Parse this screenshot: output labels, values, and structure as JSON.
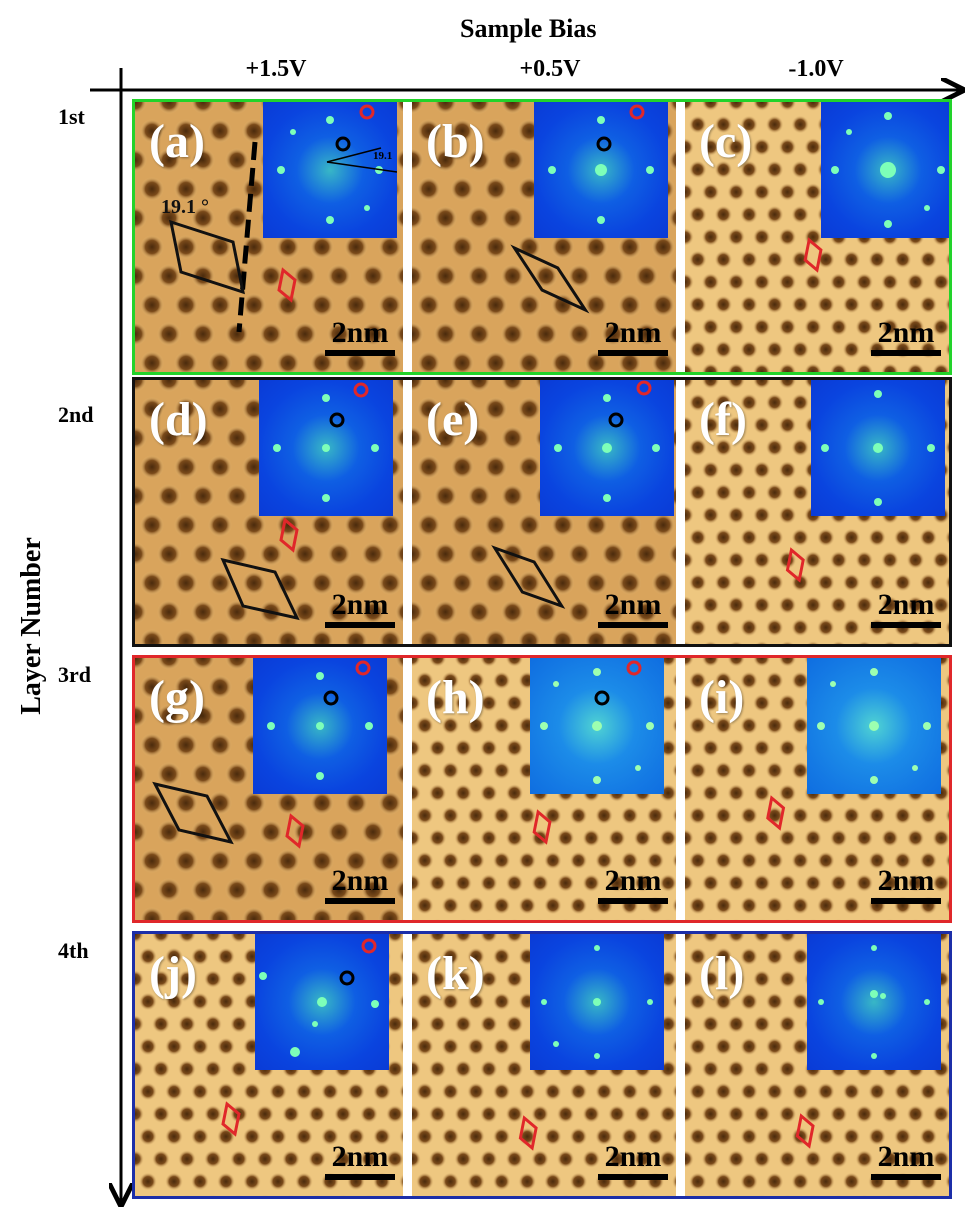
{
  "figure": {
    "x_axis_title": "Sample Bias",
    "y_axis_title": "Layer Number",
    "bias_columns": [
      "+1.5V",
      "+0.5V",
      "-1.0V"
    ],
    "layers": [
      "1st",
      "2nd",
      "3rd",
      "4th"
    ],
    "panels": [
      {
        "letter": "(a)",
        "scale": "2nm",
        "angle": "19.1 °",
        "fft_angle": "19.1"
      },
      {
        "letter": "(b)",
        "scale": "2nm"
      },
      {
        "letter": "(c)",
        "scale": "2nm"
      },
      {
        "letter": "(d)",
        "scale": "2nm"
      },
      {
        "letter": "(e)",
        "scale": "2nm"
      },
      {
        "letter": "(f)",
        "scale": "2nm"
      },
      {
        "letter": "(g)",
        "scale": "2nm"
      },
      {
        "letter": "(h)",
        "scale": "2nm"
      },
      {
        "letter": "(i)",
        "scale": "2nm"
      },
      {
        "letter": "(j)",
        "scale": "2nm"
      },
      {
        "letter": "(k)",
        "scale": "2nm"
      },
      {
        "letter": "(l)",
        "scale": "2nm"
      }
    ],
    "colors": {
      "layer1_frame": "#22d32a",
      "layer2_frame": "#111111",
      "layer3_frame": "#e0272a",
      "layer4_frame": "#1c2ea8",
      "stm_bright": "#f3cf89",
      "stm_dark": "#5a3310",
      "fft_blue": "#0a44df",
      "marker_red": "#e0272a",
      "marker_black": "#000000"
    }
  }
}
